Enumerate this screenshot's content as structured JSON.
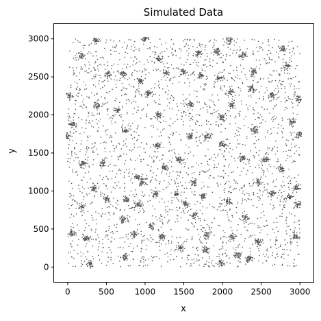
{
  "chart_data": {
    "type": "scatter",
    "title": "Simulated Data",
    "xlabel": "x",
    "ylabel": "y",
    "xlim": [
      -180,
      3180
    ],
    "ylim": [
      -200,
      3200
    ],
    "xticks": [
      0,
      500,
      1000,
      1500,
      2000,
      2500,
      3000
    ],
    "yticks": [
      0,
      500,
      1000,
      1500,
      2000,
      2500,
      3000
    ],
    "xtick_labels": [
      "0",
      "500",
      "1000",
      "1500",
      "2000",
      "2500",
      "3000"
    ],
    "ytick_labels": [
      "0",
      "500",
      "1000",
      "1500",
      "2000",
      "2500",
      "3000"
    ],
    "grid": false,
    "point_color": "#555555",
    "series": [
      {
        "clusters": [
          {
            "x": 360,
            "y": 2980
          },
          {
            "x": 1000,
            "y": 3000
          },
          {
            "x": 2080,
            "y": 2980
          },
          {
            "x": 180,
            "y": 2780
          },
          {
            "x": 1180,
            "y": 2740
          },
          {
            "x": 1680,
            "y": 2810
          },
          {
            "x": 1920,
            "y": 2830
          },
          {
            "x": 2260,
            "y": 2780
          },
          {
            "x": 2780,
            "y": 2870
          },
          {
            "x": 2840,
            "y": 2650
          },
          {
            "x": 520,
            "y": 2530
          },
          {
            "x": 720,
            "y": 2540
          },
          {
            "x": 940,
            "y": 2450
          },
          {
            "x": 1280,
            "y": 2550
          },
          {
            "x": 1500,
            "y": 2570
          },
          {
            "x": 1720,
            "y": 2520
          },
          {
            "x": 1960,
            "y": 2490
          },
          {
            "x": 2400,
            "y": 2570
          },
          {
            "x": 1040,
            "y": 2290
          },
          {
            "x": 2100,
            "y": 2300
          },
          {
            "x": 2380,
            "y": 2340
          },
          {
            "x": 2640,
            "y": 2260
          },
          {
            "x": 20,
            "y": 2250
          },
          {
            "x": 2980,
            "y": 2210
          },
          {
            "x": 380,
            "y": 2120
          },
          {
            "x": 640,
            "y": 2060
          },
          {
            "x": 1160,
            "y": 2000
          },
          {
            "x": 1590,
            "y": 2140
          },
          {
            "x": 2120,
            "y": 2130
          },
          {
            "x": 1980,
            "y": 1960
          },
          {
            "x": 60,
            "y": 1880
          },
          {
            "x": 740,
            "y": 1800
          },
          {
            "x": 2420,
            "y": 1800
          },
          {
            "x": 2900,
            "y": 1910
          },
          {
            "x": 0,
            "y": 1720
          },
          {
            "x": 1580,
            "y": 1720
          },
          {
            "x": 1800,
            "y": 1720
          },
          {
            "x": 2990,
            "y": 1750
          },
          {
            "x": 1160,
            "y": 1600
          },
          {
            "x": 2000,
            "y": 1610
          },
          {
            "x": 2260,
            "y": 1440
          },
          {
            "x": 1440,
            "y": 1400
          },
          {
            "x": 2560,
            "y": 1410
          },
          {
            "x": 200,
            "y": 1360
          },
          {
            "x": 460,
            "y": 1360
          },
          {
            "x": 1260,
            "y": 1300
          },
          {
            "x": 2760,
            "y": 1280
          },
          {
            "x": 900,
            "y": 1180
          },
          {
            "x": 1630,
            "y": 1110
          },
          {
            "x": 2460,
            "y": 1120
          },
          {
            "x": 340,
            "y": 1040
          },
          {
            "x": 960,
            "y": 1120
          },
          {
            "x": 2960,
            "y": 1040
          },
          {
            "x": 1140,
            "y": 960
          },
          {
            "x": 1400,
            "y": 960
          },
          {
            "x": 1750,
            "y": 930
          },
          {
            "x": 2640,
            "y": 960
          },
          {
            "x": 500,
            "y": 890
          },
          {
            "x": 760,
            "y": 890
          },
          {
            "x": 2080,
            "y": 860
          },
          {
            "x": 2860,
            "y": 920
          },
          {
            "x": 180,
            "y": 790
          },
          {
            "x": 920,
            "y": 820
          },
          {
            "x": 1520,
            "y": 830
          },
          {
            "x": 2970,
            "y": 820
          },
          {
            "x": 1640,
            "y": 680
          },
          {
            "x": 720,
            "y": 620
          },
          {
            "x": 2300,
            "y": 640
          },
          {
            "x": 1080,
            "y": 540
          },
          {
            "x": 60,
            "y": 450
          },
          {
            "x": 860,
            "y": 430
          },
          {
            "x": 1220,
            "y": 400
          },
          {
            "x": 1800,
            "y": 420
          },
          {
            "x": 2130,
            "y": 400
          },
          {
            "x": 2950,
            "y": 410
          },
          {
            "x": 240,
            "y": 370
          },
          {
            "x": 2460,
            "y": 330
          },
          {
            "x": 1460,
            "y": 250
          },
          {
            "x": 1780,
            "y": 230
          },
          {
            "x": 2200,
            "y": 160
          },
          {
            "x": 2340,
            "y": 110
          },
          {
            "x": 740,
            "y": 130
          },
          {
            "x": 280,
            "y": 40
          },
          {
            "x": 1980,
            "y": 50
          }
        ]
      }
    ]
  }
}
